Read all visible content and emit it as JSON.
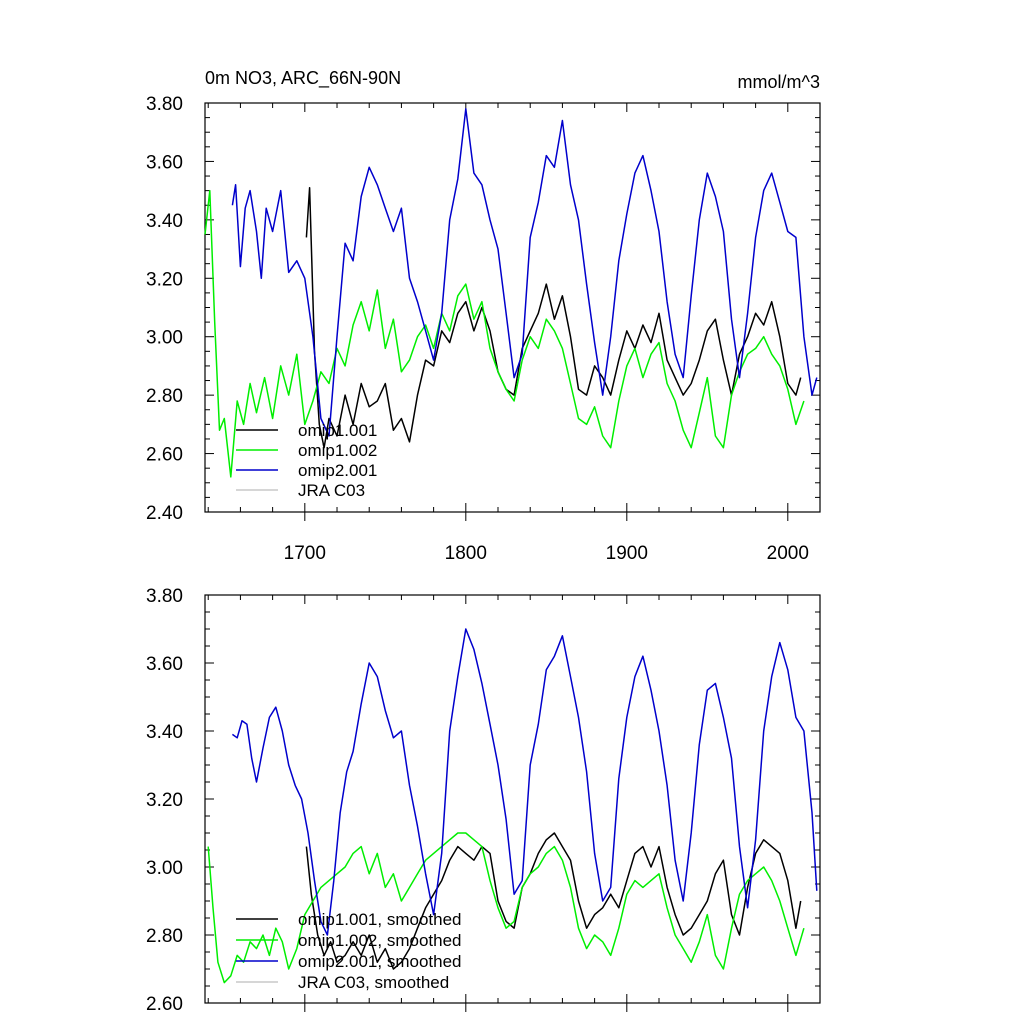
{
  "chart_data": [
    {
      "type": "line",
      "title": "0m NO3, ARC_66N-90N",
      "units": "mmol/m^3",
      "xlim": [
        1638,
        2020
      ],
      "ylim": [
        2.4,
        3.8
      ],
      "yticks": [
        "2.40",
        "2.60",
        "2.80",
        "3.00",
        "3.20",
        "3.40",
        "3.60",
        "3.80"
      ],
      "xticks": [
        "1700",
        "1800",
        "1900",
        "2000"
      ],
      "legend_position": "bottom-left",
      "series": [
        {
          "name": "omip1.001",
          "color": "#000000",
          "x": [
            1701,
            1703,
            1706,
            1709,
            1712,
            1715,
            1720,
            1725,
            1730,
            1735,
            1740,
            1745,
            1750,
            1755,
            1760,
            1765,
            1770,
            1775,
            1780,
            1785,
            1790,
            1795,
            1800,
            1805,
            1810,
            1815,
            1820,
            1825,
            1830,
            1835,
            1840,
            1845,
            1850,
            1855,
            1860,
            1865,
            1870,
            1875,
            1880,
            1885,
            1890,
            1895,
            1900,
            1905,
            1910,
            1915,
            1920,
            1925,
            1930,
            1935,
            1940,
            1945,
            1950,
            1955,
            1960,
            1965,
            1970,
            1975,
            1980,
            1985,
            1990,
            1995,
            2000,
            2005,
            2008
          ],
          "values": [
            3.34,
            3.51,
            2.95,
            2.7,
            2.62,
            2.72,
            2.66,
            2.8,
            2.7,
            2.84,
            2.76,
            2.78,
            2.84,
            2.68,
            2.72,
            2.64,
            2.8,
            2.92,
            2.9,
            3.02,
            2.98,
            3.08,
            3.12,
            3.02,
            3.1,
            3.02,
            2.88,
            2.82,
            2.8,
            2.96,
            3.02,
            3.08,
            3.18,
            3.06,
            3.14,
            3.0,
            2.82,
            2.8,
            2.9,
            2.86,
            2.8,
            2.92,
            3.02,
            2.96,
            3.04,
            2.98,
            3.08,
            2.92,
            2.86,
            2.8,
            2.84,
            2.92,
            3.02,
            3.06,
            2.92,
            2.8,
            2.94,
            3.0,
            3.08,
            3.04,
            3.12,
            3.0,
            2.84,
            2.8,
            2.86
          ]
        },
        {
          "name": "omip1.002",
          "color": "#00ee00",
          "x": [
            1638,
            1641,
            1644,
            1647,
            1650,
            1654,
            1658,
            1662,
            1666,
            1670,
            1675,
            1680,
            1685,
            1690,
            1695,
            1700,
            1705,
            1710,
            1715,
            1720,
            1725,
            1730,
            1735,
            1740,
            1745,
            1750,
            1755,
            1760,
            1765,
            1770,
            1775,
            1780,
            1785,
            1790,
            1795,
            1800,
            1805,
            1810,
            1815,
            1820,
            1825,
            1830,
            1835,
            1840,
            1845,
            1850,
            1855,
            1860,
            1865,
            1870,
            1875,
            1880,
            1885,
            1890,
            1895,
            1900,
            1905,
            1910,
            1915,
            1920,
            1925,
            1930,
            1935,
            1940,
            1945,
            1950,
            1955,
            1960,
            1965,
            1970,
            1975,
            1980,
            1985,
            1990,
            1995,
            2000,
            2005,
            2010
          ],
          "values": [
            3.35,
            3.5,
            3.05,
            2.68,
            2.72,
            2.52,
            2.78,
            2.7,
            2.84,
            2.74,
            2.86,
            2.72,
            2.9,
            2.8,
            2.94,
            2.7,
            2.78,
            2.88,
            2.84,
            2.96,
            2.9,
            3.04,
            3.12,
            3.02,
            3.16,
            2.96,
            3.06,
            2.88,
            2.92,
            3.0,
            3.04,
            2.96,
            3.08,
            3.02,
            3.14,
            3.18,
            3.06,
            3.12,
            2.96,
            2.88,
            2.82,
            2.78,
            2.92,
            3.0,
            2.96,
            3.06,
            3.02,
            2.96,
            2.84,
            2.72,
            2.7,
            2.76,
            2.66,
            2.62,
            2.78,
            2.9,
            2.96,
            2.86,
            2.94,
            2.98,
            2.84,
            2.78,
            2.68,
            2.62,
            2.74,
            2.86,
            2.66,
            2.62,
            2.8,
            2.88,
            2.94,
            2.96,
            3.0,
            2.94,
            2.9,
            2.82,
            2.7,
            2.78
          ]
        },
        {
          "name": "omip2.001",
          "color": "#0000cc",
          "x": [
            1655,
            1657,
            1660,
            1663,
            1666,
            1670,
            1673,
            1676,
            1680,
            1685,
            1690,
            1695,
            1700,
            1705,
            1710,
            1715,
            1720,
            1725,
            1730,
            1735,
            1740,
            1745,
            1750,
            1755,
            1760,
            1765,
            1770,
            1775,
            1780,
            1785,
            1790,
            1795,
            1800,
            1805,
            1810,
            1815,
            1820,
            1825,
            1830,
            1835,
            1840,
            1845,
            1850,
            1855,
            1860,
            1865,
            1870,
            1875,
            1880,
            1885,
            1890,
            1895,
            1900,
            1905,
            1910,
            1915,
            1920,
            1925,
            1930,
            1935,
            1940,
            1945,
            1950,
            1955,
            1960,
            1965,
            1970,
            1975,
            1980,
            1985,
            1990,
            1995,
            2000,
            2005,
            2010,
            2015,
            2018
          ],
          "values": [
            3.45,
            3.52,
            3.24,
            3.44,
            3.5,
            3.36,
            3.2,
            3.44,
            3.36,
            3.5,
            3.22,
            3.26,
            3.2,
            3.0,
            2.72,
            2.66,
            3.0,
            3.32,
            3.26,
            3.48,
            3.58,
            3.52,
            3.44,
            3.36,
            3.44,
            3.2,
            3.12,
            3.02,
            2.92,
            3.08,
            3.4,
            3.54,
            3.78,
            3.56,
            3.52,
            3.4,
            3.3,
            3.08,
            2.86,
            2.94,
            3.34,
            3.46,
            3.62,
            3.58,
            3.74,
            3.52,
            3.4,
            3.18,
            2.98,
            2.8,
            3.0,
            3.26,
            3.42,
            3.56,
            3.62,
            3.5,
            3.36,
            3.12,
            2.94,
            2.86,
            3.14,
            3.4,
            3.56,
            3.48,
            3.36,
            3.06,
            2.86,
            3.08,
            3.34,
            3.5,
            3.56,
            3.46,
            3.36,
            3.34,
            3.0,
            2.8,
            2.86
          ]
        },
        {
          "name": "JRA C03",
          "color": "#c8c8c8",
          "x": [],
          "values": []
        }
      ]
    },
    {
      "type": "line",
      "title": "",
      "xlim": [
        1638,
        2020
      ],
      "ylim": [
        2.6,
        3.8
      ],
      "yticks": [
        "2.60",
        "2.80",
        "3.00",
        "3.20",
        "3.40",
        "3.60",
        "3.80"
      ],
      "legend_position": "bottom-left",
      "series": [
        {
          "name": "omip1.001, smoothed",
          "color": "#000000",
          "x": [
            1701,
            1704,
            1708,
            1712,
            1716,
            1720,
            1725,
            1730,
            1735,
            1740,
            1745,
            1750,
            1755,
            1760,
            1765,
            1770,
            1775,
            1780,
            1785,
            1790,
            1795,
            1800,
            1805,
            1810,
            1815,
            1820,
            1825,
            1830,
            1835,
            1840,
            1845,
            1850,
            1855,
            1860,
            1865,
            1870,
            1875,
            1880,
            1885,
            1890,
            1895,
            1900,
            1905,
            1910,
            1915,
            1920,
            1925,
            1930,
            1935,
            1940,
            1945,
            1950,
            1955,
            1960,
            1965,
            1970,
            1975,
            1980,
            1985,
            1990,
            1995,
            2000,
            2005,
            2008
          ],
          "values": [
            3.06,
            2.92,
            2.8,
            2.74,
            2.78,
            2.72,
            2.74,
            2.78,
            2.74,
            2.8,
            2.72,
            2.76,
            2.7,
            2.72,
            2.76,
            2.82,
            2.88,
            2.92,
            2.96,
            3.02,
            3.06,
            3.04,
            3.02,
            3.06,
            3.04,
            2.9,
            2.84,
            2.82,
            2.94,
            2.98,
            3.04,
            3.08,
            3.1,
            3.06,
            3.02,
            2.9,
            2.82,
            2.86,
            2.88,
            2.92,
            2.88,
            2.96,
            3.04,
            3.06,
            3.0,
            3.06,
            2.94,
            2.86,
            2.8,
            2.82,
            2.86,
            2.9,
            2.98,
            3.02,
            2.86,
            2.8,
            2.94,
            3.04,
            3.08,
            3.06,
            3.04,
            2.96,
            2.82,
            2.9
          ]
        },
        {
          "name": "omip1.002, smoothed",
          "color": "#00ee00",
          "x": [
            1640,
            1643,
            1646,
            1650,
            1654,
            1658,
            1662,
            1666,
            1670,
            1674,
            1678,
            1682,
            1686,
            1690,
            1695,
            1700,
            1705,
            1710,
            1715,
            1720,
            1725,
            1730,
            1735,
            1740,
            1745,
            1750,
            1755,
            1760,
            1765,
            1770,
            1775,
            1780,
            1785,
            1790,
            1795,
            1800,
            1805,
            1810,
            1815,
            1820,
            1825,
            1830,
            1835,
            1840,
            1845,
            1850,
            1855,
            1860,
            1865,
            1870,
            1875,
            1880,
            1885,
            1890,
            1895,
            1900,
            1905,
            1910,
            1915,
            1920,
            1925,
            1930,
            1935,
            1940,
            1945,
            1950,
            1955,
            1960,
            1965,
            1970,
            1975,
            1980,
            1985,
            1990,
            1995,
            2000,
            2005,
            2010
          ],
          "values": [
            3.06,
            2.88,
            2.72,
            2.66,
            2.68,
            2.74,
            2.72,
            2.78,
            2.76,
            2.8,
            2.74,
            2.82,
            2.78,
            2.7,
            2.76,
            2.86,
            2.9,
            2.94,
            2.96,
            2.98,
            3.0,
            3.04,
            3.06,
            2.98,
            3.04,
            2.94,
            2.98,
            2.9,
            2.94,
            2.98,
            3.02,
            3.04,
            3.06,
            3.08,
            3.1,
            3.1,
            3.08,
            3.06,
            2.96,
            2.88,
            2.82,
            2.84,
            2.94,
            2.98,
            3.0,
            3.04,
            3.06,
            3.02,
            2.94,
            2.82,
            2.76,
            2.8,
            2.78,
            2.74,
            2.82,
            2.92,
            2.96,
            2.94,
            2.96,
            2.98,
            2.88,
            2.8,
            2.76,
            2.72,
            2.78,
            2.86,
            2.74,
            2.7,
            2.82,
            2.92,
            2.96,
            2.98,
            3.0,
            2.96,
            2.9,
            2.82,
            2.74,
            2.82
          ]
        },
        {
          "name": "omip2.001, smoothed",
          "color": "#0000cc",
          "x": [
            1655,
            1658,
            1661,
            1664,
            1667,
            1670,
            1674,
            1678,
            1682,
            1686,
            1690,
            1694,
            1698,
            1702,
            1706,
            1710,
            1714,
            1718,
            1722,
            1726,
            1730,
            1735,
            1740,
            1745,
            1750,
            1755,
            1760,
            1765,
            1770,
            1775,
            1780,
            1785,
            1790,
            1795,
            1800,
            1805,
            1810,
            1815,
            1820,
            1825,
            1830,
            1835,
            1840,
            1845,
            1850,
            1855,
            1860,
            1865,
            1870,
            1875,
            1880,
            1885,
            1890,
            1895,
            1900,
            1905,
            1910,
            1915,
            1920,
            1925,
            1930,
            1935,
            1940,
            1945,
            1950,
            1955,
            1960,
            1965,
            1970,
            1975,
            1980,
            1985,
            1990,
            1995,
            2000,
            2005,
            2010,
            2015,
            2018
          ],
          "values": [
            3.39,
            3.38,
            3.43,
            3.42,
            3.32,
            3.25,
            3.35,
            3.44,
            3.47,
            3.4,
            3.3,
            3.24,
            3.2,
            3.1,
            2.96,
            2.84,
            2.8,
            2.96,
            3.16,
            3.28,
            3.34,
            3.48,
            3.6,
            3.56,
            3.46,
            3.38,
            3.4,
            3.24,
            3.12,
            2.98,
            2.86,
            3.04,
            3.4,
            3.56,
            3.7,
            3.64,
            3.54,
            3.42,
            3.3,
            3.14,
            2.92,
            2.96,
            3.3,
            3.42,
            3.58,
            3.62,
            3.68,
            3.56,
            3.44,
            3.28,
            3.04,
            2.9,
            2.94,
            3.26,
            3.44,
            3.56,
            3.62,
            3.52,
            3.4,
            3.24,
            3.02,
            2.9,
            3.1,
            3.36,
            3.52,
            3.54,
            3.44,
            3.32,
            3.06,
            2.88,
            3.08,
            3.4,
            3.56,
            3.66,
            3.58,
            3.44,
            3.4,
            3.16,
            2.93
          ]
        },
        {
          "name": "JRA C03, smoothed",
          "color": "#c8c8c8",
          "x": [],
          "values": []
        }
      ]
    }
  ]
}
